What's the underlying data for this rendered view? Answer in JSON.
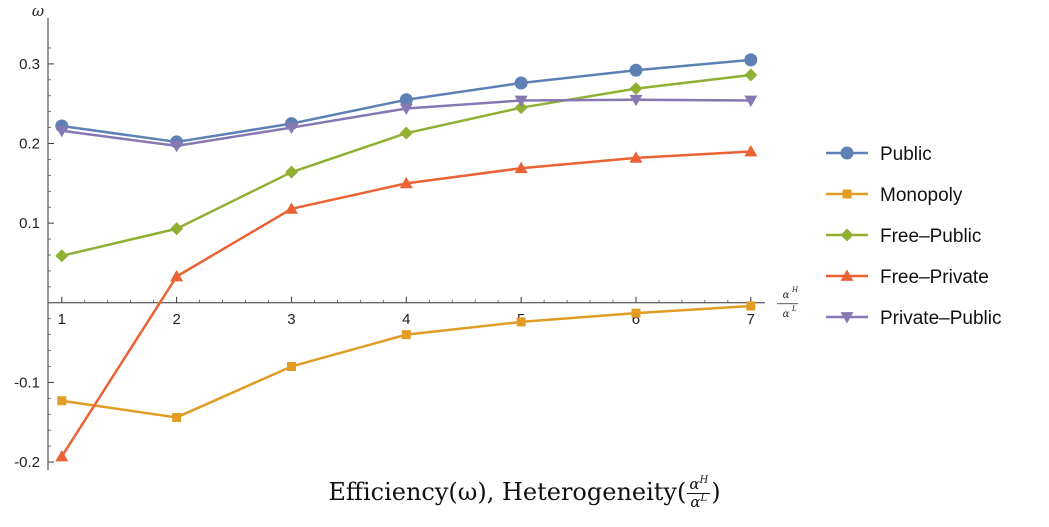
{
  "chart_data": {
    "type": "line",
    "ylabel": "ω",
    "xlabel_num": "α",
    "xlabel_num_sup": "H",
    "xlabel_den": "α",
    "xlabel_den_sup": "L",
    "caption_prefix": "Efficiency(ω), Heterogeneity(",
    "caption_suffix": ")",
    "x": [
      1,
      2,
      3,
      4,
      5,
      6,
      7
    ],
    "xlim": [
      0.88,
      7.08
    ],
    "ylim": [
      -0.21,
      0.33
    ],
    "x_ticks": [
      "1",
      "2",
      "3",
      "4",
      "5",
      "6",
      "7"
    ],
    "y_ticks": [
      {
        "value": -0.2,
        "label": "-0.2"
      },
      {
        "value": -0.1,
        "label": "-0.1"
      },
      {
        "value": 0.1,
        "label": "0.1"
      },
      {
        "value": 0.2,
        "label": "0.2"
      },
      {
        "value": 0.3,
        "label": "0.3"
      }
    ],
    "legend_position": "right",
    "grid": false,
    "series": [
      {
        "name": "Public",
        "color": "#5e81b5",
        "marker": "circle",
        "values": [
          0.222,
          0.202,
          0.225,
          0.255,
          0.276,
          0.292,
          0.305
        ]
      },
      {
        "name": "Monopoly",
        "color": "#e19c24",
        "marker": "square",
        "values": [
          -0.123,
          -0.144,
          -0.08,
          -0.04,
          -0.024,
          -0.013,
          -0.004
        ]
      },
      {
        "name": "Free–Public",
        "color": "#8fb032",
        "marker": "diamond",
        "values": [
          0.059,
          0.093,
          0.164,
          0.213,
          0.245,
          0.269,
          0.286
        ]
      },
      {
        "name": "Free–Private",
        "color": "#eb6235",
        "marker": "triangle-up",
        "values": [
          -0.193,
          0.033,
          0.118,
          0.15,
          0.169,
          0.182,
          0.19
        ]
      },
      {
        "name": "Private–Public",
        "color": "#8778b3",
        "marker": "triangle-down",
        "values": [
          0.216,
          0.197,
          0.22,
          0.244,
          0.254,
          0.255,
          0.254
        ]
      }
    ]
  }
}
